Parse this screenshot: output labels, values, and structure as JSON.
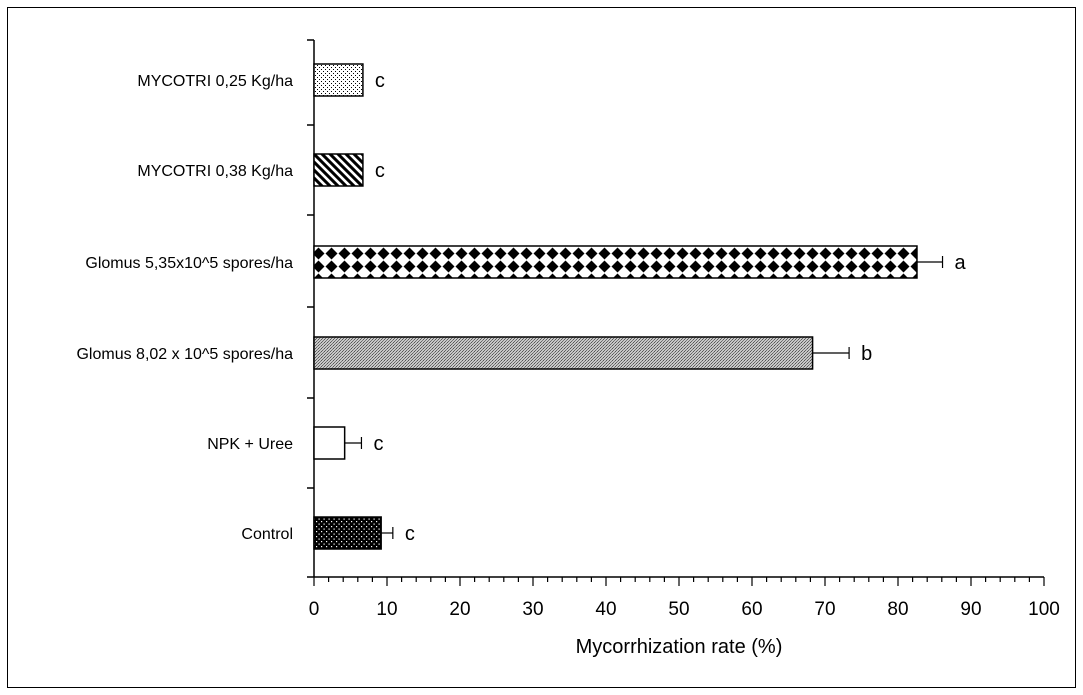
{
  "chart_data": {
    "type": "bar",
    "orientation": "horizontal",
    "title": "",
    "xlabel": "Mycorrhization rate (%)",
    "ylabel": "",
    "xlim": [
      0,
      100
    ],
    "x_ticks": [
      "0",
      "10",
      "20",
      "30",
      "40",
      "50",
      "60",
      "70",
      "80",
      "90",
      "100"
    ],
    "grid": false,
    "legend": "none",
    "categories": [
      "MYCOTRI 0,25 Kg/ha",
      "MYCOTRI 0,38 Kg/ha",
      "Glomus 5,35x10^5 spores/ha",
      "Glomus 8,02 x 10^5 spores/ha",
      "NPK + Uree",
      "Control"
    ],
    "values": [
      6.7,
      6.7,
      82.6,
      68.3,
      4.2,
      9.2
    ],
    "errors": [
      0,
      0,
      3.5,
      5.0,
      2.3,
      1.6
    ],
    "annotations": [
      "c",
      "c",
      "a",
      "b",
      "c",
      "c"
    ],
    "patterns": [
      "dots",
      "diagonal-stripes",
      "black-diamonds",
      "fine-crosshatch",
      "none",
      "black-with-white-dots"
    ]
  }
}
